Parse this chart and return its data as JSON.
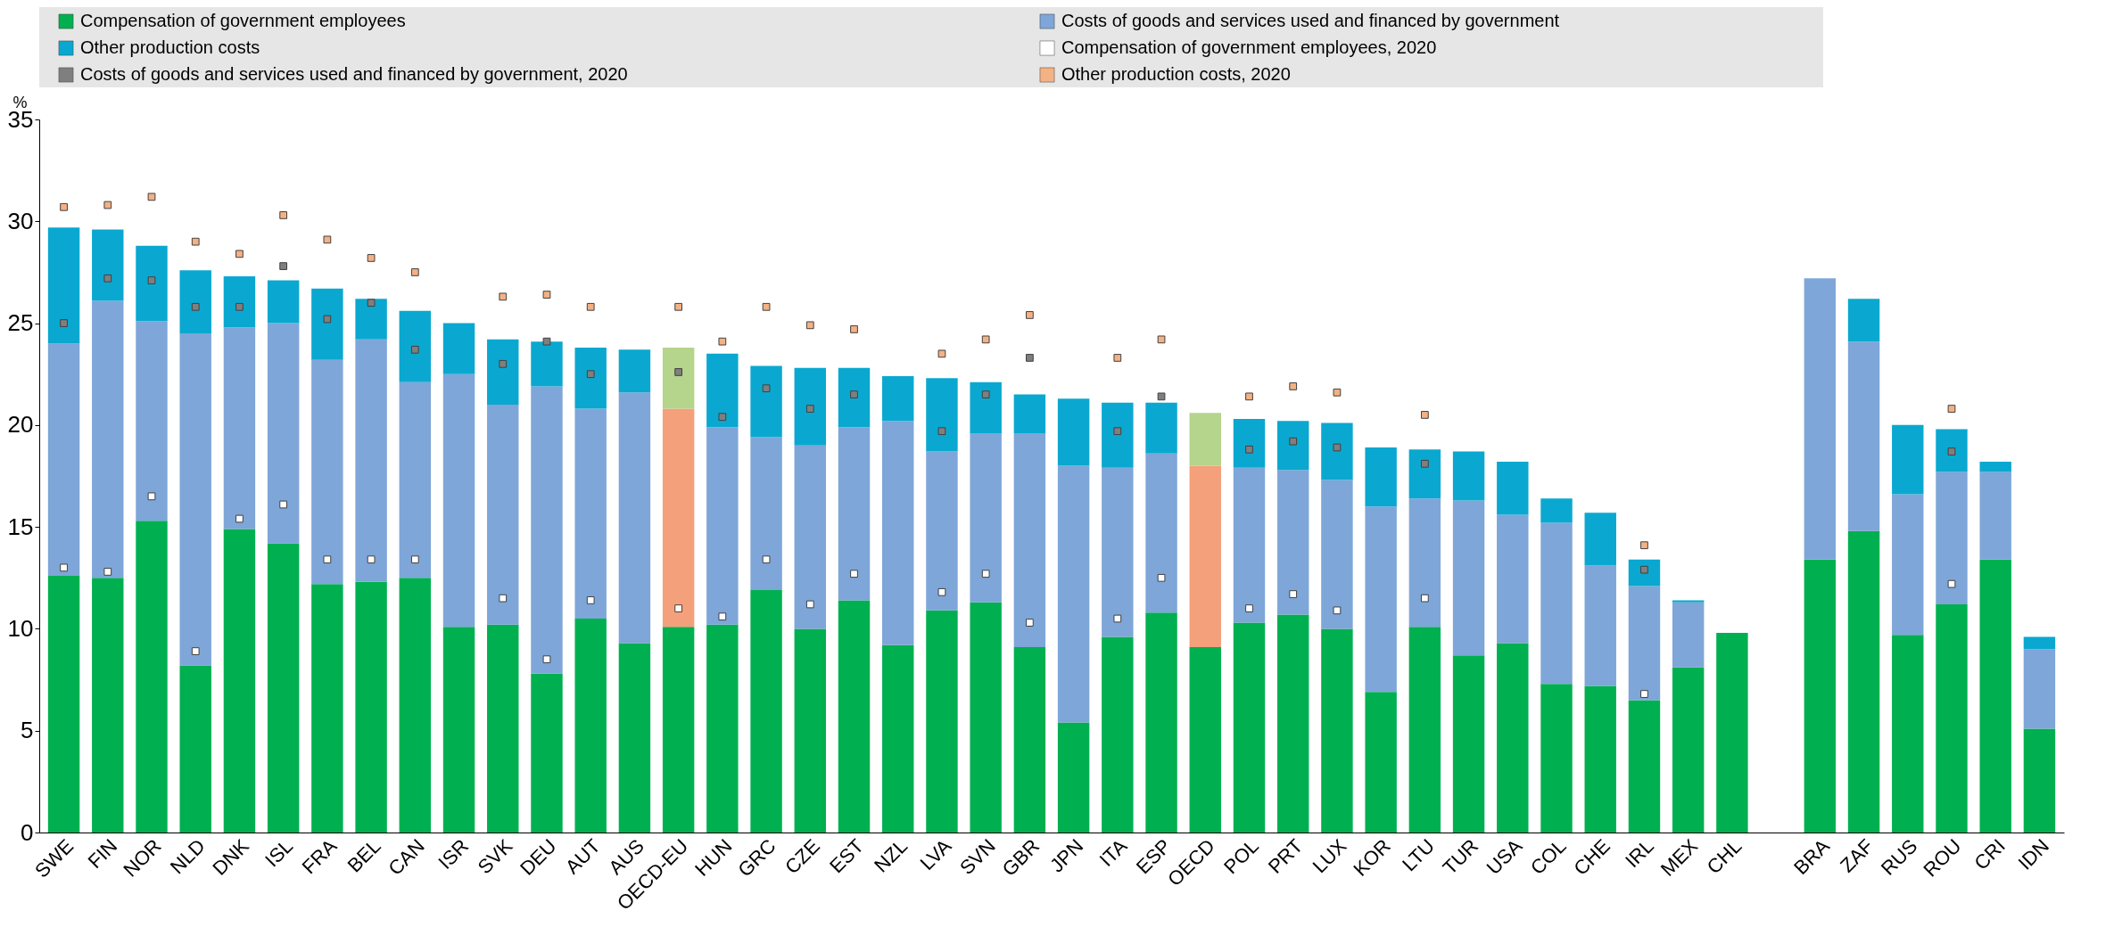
{
  "chart_data": {
    "type": "bar",
    "stacked": true,
    "ylabel": "%",
    "legend": "top",
    "grid": false,
    "ylim": [
      0,
      35
    ],
    "yticks": [
      0,
      5,
      10,
      15,
      20,
      25,
      30,
      35
    ],
    "categories": [
      "SWE",
      "FIN",
      "NOR",
      "NLD",
      "DNK",
      "ISL",
      "FRA",
      "BEL",
      "CAN",
      "ISR",
      "SVK",
      "DEU",
      "AUT",
      "AUS",
      "OECD-EU",
      "HUN",
      "GRC",
      "CZE",
      "EST",
      "NZL",
      "LVA",
      "SVN",
      "GBR",
      "JPN",
      "ITA",
      "ESP",
      "OECD",
      "POL",
      "PRT",
      "LUX",
      "KOR",
      "LTU",
      "TUR",
      "USA",
      "COL",
      "CHE",
      "IRL",
      "MEX",
      "CHL",
      null,
      "BRA",
      "ZAF",
      "RUS",
      "ROU",
      "CRI",
      "IDN"
    ],
    "series": [
      {
        "name": "Compensation of government employees",
        "color": "#00b050",
        "values": [
          12.6,
          12.5,
          15.3,
          8.2,
          14.9,
          14.2,
          12.2,
          12.3,
          12.5,
          10.1,
          10.2,
          7.8,
          10.5,
          9.3,
          10.1,
          10.2,
          11.9,
          10.0,
          11.4,
          9.2,
          10.9,
          11.3,
          9.1,
          5.4,
          9.6,
          10.8,
          9.1,
          10.3,
          10.7,
          10.0,
          6.9,
          10.1,
          8.7,
          9.3,
          7.3,
          7.2,
          6.5,
          8.1,
          9.8,
          null,
          13.4,
          14.8,
          9.7,
          11.2,
          13.4,
          5.1
        ]
      },
      {
        "name": "Costs of goods and services used and financed by government",
        "color": "#7ea6d8",
        "colors": [
          "#7ea6d8",
          "#7ea6d8",
          "#7ea6d8",
          "#7ea6d8",
          "#7ea6d8",
          "#7ea6d8",
          "#7ea6d8",
          "#7ea6d8",
          "#7ea6d8",
          "#7ea6d8",
          "#7ea6d8",
          "#7ea6d8",
          "#7ea6d8",
          "#7ea6d8",
          "#f4a07a",
          "#7ea6d8",
          "#7ea6d8",
          "#7ea6d8",
          "#7ea6d8",
          "#7ea6d8",
          "#7ea6d8",
          "#7ea6d8",
          "#7ea6d8",
          "#7ea6d8",
          "#7ea6d8",
          "#7ea6d8",
          "#f4a07a",
          "#7ea6d8",
          "#7ea6d8",
          "#7ea6d8",
          "#7ea6d8",
          "#7ea6d8",
          "#7ea6d8",
          "#7ea6d8",
          "#7ea6d8",
          "#7ea6d8",
          "#7ea6d8",
          "#7ea6d8",
          "#7ea6d8",
          null,
          "#7ea6d8",
          "#7ea6d8",
          "#7ea6d8",
          "#7ea6d8",
          "#7ea6d8",
          "#7ea6d8"
        ],
        "values": [
          11.4,
          13.6,
          9.8,
          16.3,
          9.9,
          10.8,
          11.0,
          11.9,
          9.6,
          12.4,
          10.8,
          14.1,
          10.3,
          12.3,
          10.7,
          9.7,
          7.5,
          9.0,
          8.5,
          11.0,
          7.8,
          8.3,
          10.5,
          12.6,
          8.3,
          7.8,
          8.9,
          7.6,
          7.1,
          7.3,
          9.1,
          6.3,
          7.6,
          6.3,
          7.9,
          5.9,
          5.6,
          3.2,
          0,
          null,
          13.8,
          9.3,
          6.9,
          6.5,
          4.3,
          3.9
        ]
      },
      {
        "name": "Other production costs",
        "color": "#0aa8d0",
        "colors": [
          "#0aa8d0",
          "#0aa8d0",
          "#0aa8d0",
          "#0aa8d0",
          "#0aa8d0",
          "#0aa8d0",
          "#0aa8d0",
          "#0aa8d0",
          "#0aa8d0",
          "#0aa8d0",
          "#0aa8d0",
          "#0aa8d0",
          "#0aa8d0",
          "#0aa8d0",
          "#b5d48c",
          "#0aa8d0",
          "#0aa8d0",
          "#0aa8d0",
          "#0aa8d0",
          "#0aa8d0",
          "#0aa8d0",
          "#0aa8d0",
          "#0aa8d0",
          "#0aa8d0",
          "#0aa8d0",
          "#0aa8d0",
          "#b5d48c",
          "#0aa8d0",
          "#0aa8d0",
          "#0aa8d0",
          "#0aa8d0",
          "#0aa8d0",
          "#0aa8d0",
          "#0aa8d0",
          "#0aa8d0",
          "#0aa8d0",
          "#0aa8d0",
          "#0aa8d0",
          "#0aa8d0",
          null,
          "#0aa8d0",
          "#0aa8d0",
          "#0aa8d0",
          "#0aa8d0",
          "#0aa8d0",
          "#0aa8d0"
        ],
        "values": [
          5.7,
          3.5,
          3.7,
          3.1,
          2.5,
          2.1,
          3.5,
          2.0,
          3.5,
          2.5,
          3.2,
          2.2,
          3.0,
          2.1,
          3.0,
          3.6,
          3.5,
          3.8,
          2.9,
          2.2,
          3.6,
          2.5,
          1.9,
          3.3,
          3.2,
          2.5,
          2.6,
          2.4,
          2.4,
          2.8,
          2.9,
          2.4,
          2.4,
          2.6,
          1.2,
          2.6,
          1.3,
          0.1,
          0,
          null,
          0,
          2.1,
          3.4,
          2.1,
          0.5,
          0.6
        ]
      },
      {
        "name": "Compensation of government employees, 2020",
        "type": "scatter",
        "marker": "square",
        "color": "#ffffff",
        "values": [
          13.0,
          12.8,
          16.5,
          8.9,
          15.4,
          16.1,
          13.4,
          13.4,
          13.4,
          null,
          11.5,
          8.5,
          11.4,
          null,
          11.0,
          10.6,
          13.4,
          11.2,
          12.7,
          null,
          11.8,
          12.7,
          10.3,
          null,
          10.5,
          12.5,
          null,
          11.0,
          11.7,
          10.9,
          null,
          11.5,
          null,
          null,
          null,
          null,
          6.8,
          null,
          null,
          null,
          null,
          null,
          null,
          12.2,
          null,
          null
        ]
      },
      {
        "name": "Costs of goods and services used and financed by government, 2020",
        "type": "scatter",
        "marker": "square",
        "color": "#7f7f7f",
        "values": [
          25.0,
          27.2,
          27.1,
          25.8,
          25.8,
          27.8,
          25.2,
          26.0,
          23.7,
          null,
          23.0,
          24.1,
          22.5,
          null,
          22.6,
          20.4,
          21.8,
          20.8,
          21.5,
          null,
          19.7,
          21.5,
          23.3,
          null,
          19.7,
          21.4,
          null,
          18.8,
          19.2,
          18.9,
          null,
          18.1,
          null,
          null,
          null,
          null,
          12.9,
          null,
          null,
          null,
          null,
          null,
          null,
          18.7,
          null,
          null
        ]
      },
      {
        "name": "Other production costs, 2020",
        "type": "scatter",
        "marker": "square",
        "color": "#f4b183",
        "values": [
          30.7,
          30.8,
          31.2,
          29.0,
          28.4,
          30.3,
          29.1,
          28.2,
          27.5,
          null,
          26.3,
          26.4,
          25.8,
          null,
          25.8,
          24.1,
          25.8,
          24.9,
          24.7,
          null,
          23.5,
          24.2,
          25.4,
          null,
          23.3,
          24.2,
          null,
          21.4,
          21.9,
          21.6,
          null,
          20.5,
          null,
          null,
          null,
          null,
          14.1,
          null,
          null,
          null,
          null,
          null,
          null,
          20.8,
          null,
          null
        ]
      }
    ]
  }
}
